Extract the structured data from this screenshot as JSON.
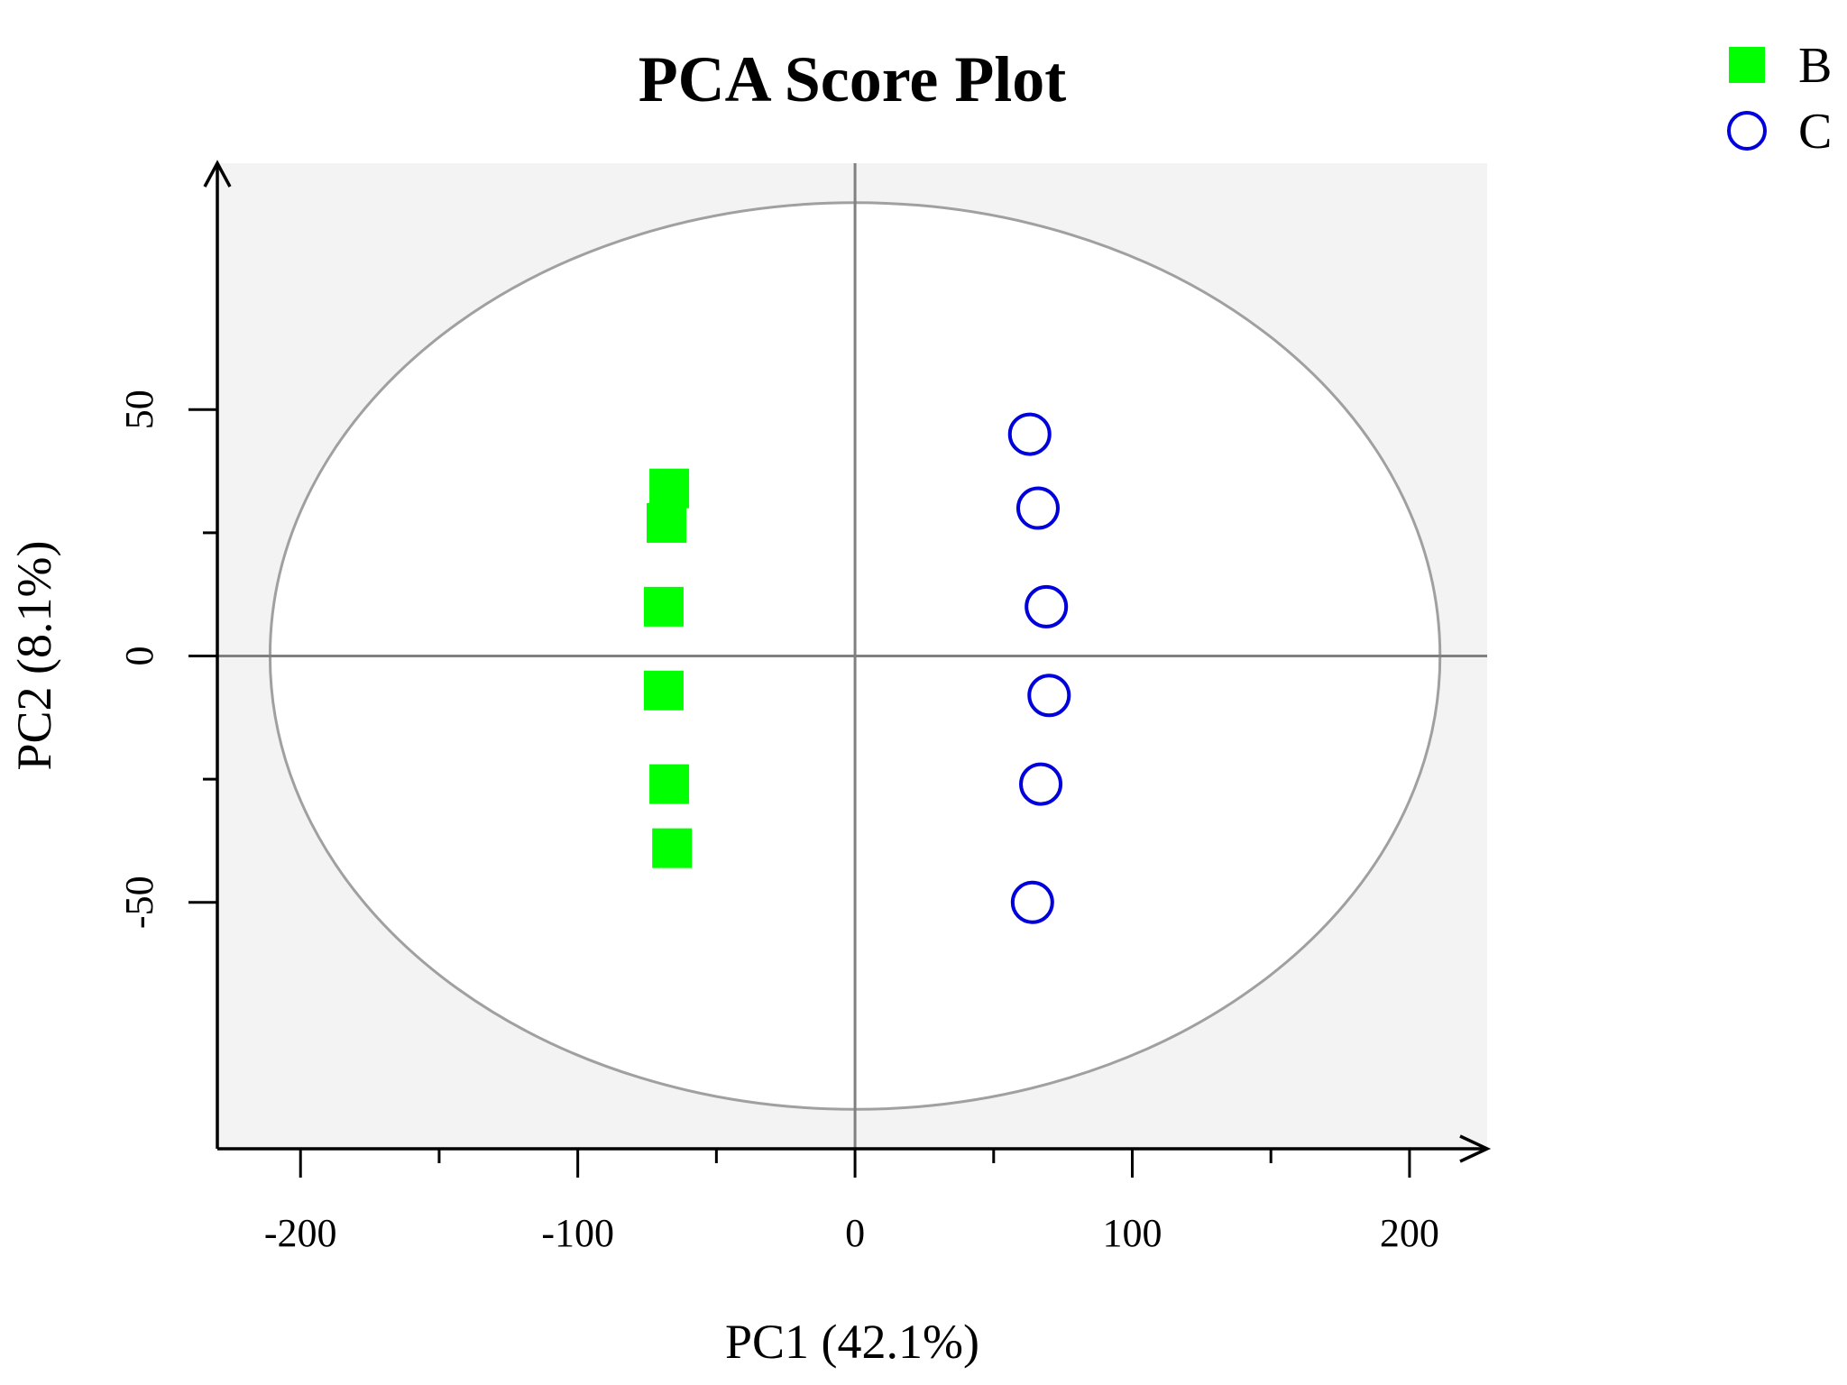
{
  "chart_data": {
    "type": "scatter",
    "title": "PCA Score Plot",
    "xlabel": "PC1 (42.1%)",
    "ylabel": "PC2 (8.1%)",
    "xlim": [
      -230,
      228
    ],
    "ylim": [
      -100,
      100
    ],
    "xticks": [
      -200,
      -100,
      0,
      100,
      200
    ],
    "xminor": [
      -150,
      -50,
      50,
      150
    ],
    "yticks": [
      -50,
      0,
      50
    ],
    "yminor": [
      -25,
      25
    ],
    "xtick_labels": [
      "-200",
      "-100",
      "0",
      "100",
      "200"
    ],
    "ytick_labels": [
      "-50",
      "0",
      "50"
    ],
    "ellipse": {
      "cx": 0,
      "cy": 0,
      "rx": 211,
      "ry": 92
    },
    "zero_lines": true,
    "legend_position": "top-right",
    "series": [
      {
        "name": "B",
        "marker": "square",
        "color": "#00ff00",
        "points": [
          {
            "x": -67,
            "y": 34
          },
          {
            "x": -68,
            "y": 27
          },
          {
            "x": -69,
            "y": 10
          },
          {
            "x": -69,
            "y": -7
          },
          {
            "x": -67,
            "y": -26
          },
          {
            "x": -66,
            "y": -39
          }
        ]
      },
      {
        "name": "C",
        "marker": "circle-open",
        "color": "#0000dd",
        "points": [
          {
            "x": 63,
            "y": 45
          },
          {
            "x": 66,
            "y": 30
          },
          {
            "x": 69,
            "y": 10
          },
          {
            "x": 70,
            "y": -8
          },
          {
            "x": 67,
            "y": -26
          },
          {
            "x": 64,
            "y": -50
          }
        ]
      }
    ]
  }
}
